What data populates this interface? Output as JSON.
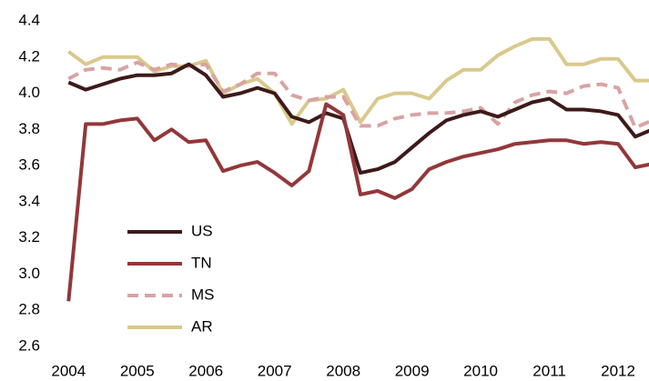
{
  "chart_data": {
    "type": "line",
    "x": [
      2004,
      2004.25,
      2004.5,
      2004.75,
      2005,
      2005.25,
      2005.5,
      2005.75,
      2006,
      2006.25,
      2006.5,
      2006.75,
      2007,
      2007.25,
      2007.5,
      2007.75,
      2008,
      2008.25,
      2008.5,
      2008.75,
      2009,
      2009.25,
      2009.5,
      2009.75,
      2010,
      2010.25,
      2010.5,
      2010.75,
      2011,
      2011.25,
      2011.5,
      2011.75,
      2012,
      2012.25,
      2012.5
    ],
    "series": [
      {
        "name": "US",
        "color": "#3d1a1a",
        "line_style": "solid",
        "values": [
          4.06,
          4.02,
          4.05,
          4.08,
          4.1,
          4.1,
          4.11,
          4.16,
          4.1,
          3.98,
          4.0,
          4.03,
          4.0,
          3.87,
          3.84,
          3.89,
          3.86,
          3.56,
          3.58,
          3.62,
          3.7,
          3.78,
          3.85,
          3.88,
          3.9,
          3.87,
          3.91,
          3.95,
          3.97,
          3.91,
          3.91,
          3.9,
          3.88,
          3.76,
          3.8
        ]
      },
      {
        "name": "TN",
        "color": "#93373a",
        "line_style": "solid",
        "values": [
          2.85,
          3.83,
          3.83,
          3.85,
          3.86,
          3.74,
          3.8,
          3.73,
          3.74,
          3.57,
          3.6,
          3.62,
          3.56,
          3.49,
          3.57,
          3.94,
          3.88,
          3.44,
          3.46,
          3.42,
          3.47,
          3.58,
          3.62,
          3.65,
          3.67,
          3.69,
          3.72,
          3.73,
          3.74,
          3.74,
          3.72,
          3.73,
          3.72,
          3.59,
          3.61
        ]
      },
      {
        "name": "MS",
        "color": "#d9a3a3",
        "line_style": "dashed",
        "values": [
          4.08,
          4.13,
          4.14,
          4.13,
          4.17,
          4.13,
          4.16,
          4.15,
          4.16,
          4.01,
          4.05,
          4.11,
          4.11,
          3.99,
          3.96,
          3.98,
          3.98,
          3.82,
          3.82,
          3.86,
          3.88,
          3.89,
          3.89,
          3.9,
          3.92,
          3.83,
          3.95,
          3.99,
          4.01,
          4.0,
          4.04,
          4.05,
          4.03,
          3.81,
          3.85
        ]
      },
      {
        "name": "AR",
        "color": "#d9c98c",
        "line_style": "solid",
        "values": [
          4.23,
          4.16,
          4.2,
          4.2,
          4.2,
          4.12,
          4.15,
          4.15,
          4.18,
          4.0,
          4.05,
          4.08,
          4.0,
          3.83,
          3.96,
          3.97,
          4.02,
          3.84,
          3.97,
          4.0,
          4.0,
          3.97,
          4.07,
          4.13,
          4.13,
          4.21,
          4.26,
          4.3,
          4.3,
          4.16,
          4.16,
          4.19,
          4.19,
          4.07,
          4.07
        ]
      }
    ],
    "xlim": [
      2003.93,
      2012.45
    ],
    "xticks": [
      2004,
      2005,
      2006,
      2007,
      2008,
      2009,
      2010,
      2011,
      2012
    ],
    "ylim": [
      2.6,
      4.4
    ],
    "yticks": [
      2.6,
      2.8,
      {
        "value": 3,
        "label": "3.0"
      },
      3.2,
      3.4,
      3.6,
      3.8,
      {
        "value": 4,
        "label": "4.0"
      },
      4.2,
      4.4
    ],
    "grid": false,
    "legend": "lower-left"
  }
}
